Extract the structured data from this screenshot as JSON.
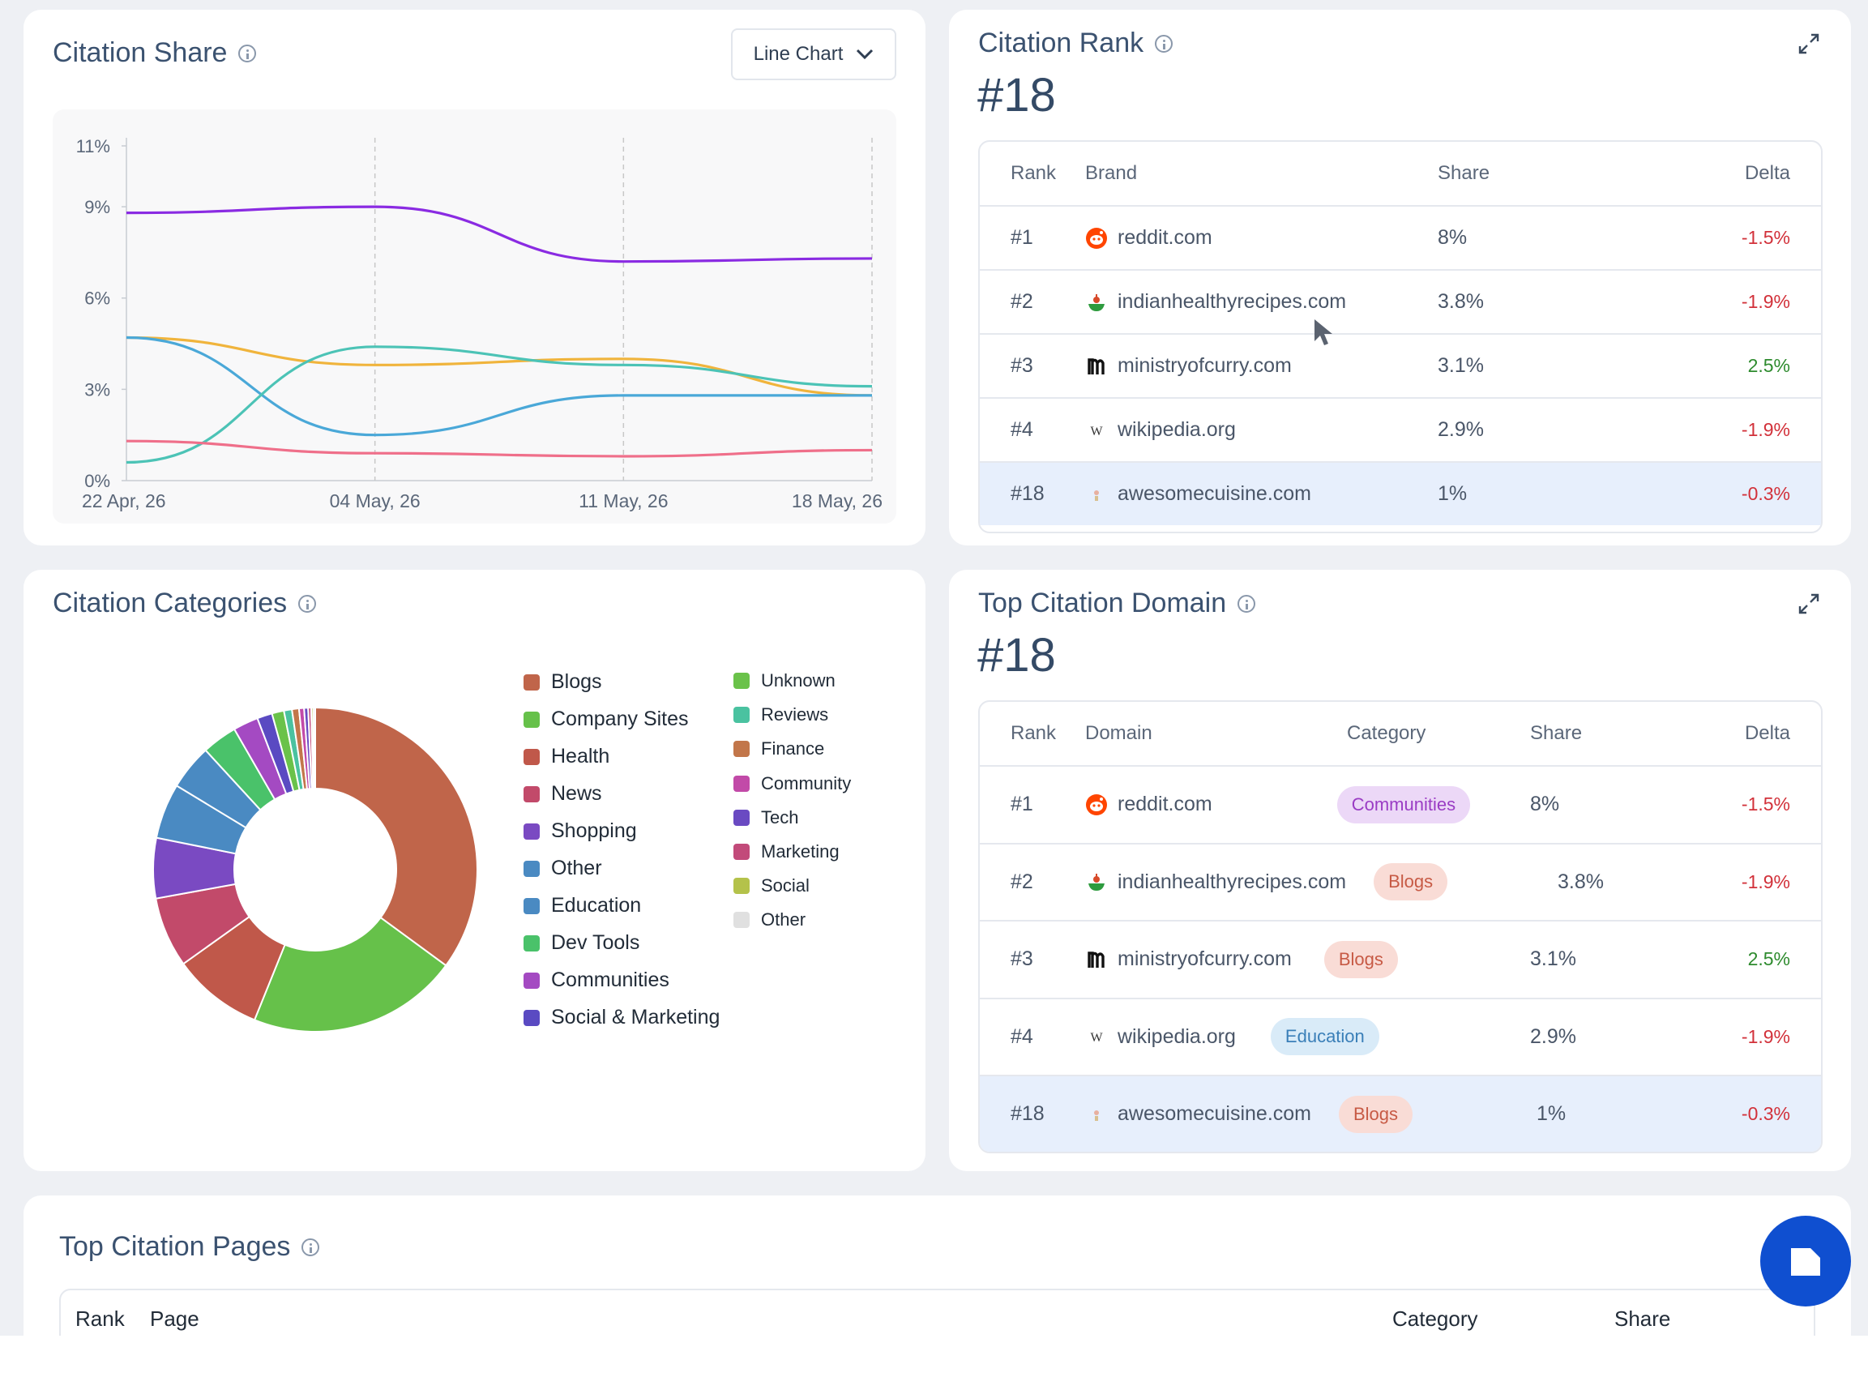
{
  "citation_share": {
    "title": "Citation Share",
    "dropdown_label": "Line Chart",
    "chart_data": {
      "type": "line",
      "x": [
        "22 Apr, 26",
        "04 May, 26",
        "11 May, 26",
        "18 May, 26"
      ],
      "y_ticks": [
        "0%",
        "3%",
        "6%",
        "9%",
        "11%"
      ],
      "ylim": [
        0,
        11
      ],
      "grid": "vertical dashed",
      "series": [
        {
          "color": "#8a2be2",
          "values": [
            8.8,
            9.0,
            7.2,
            7.3
          ]
        },
        {
          "color": "#f0b43c",
          "values": [
            4.7,
            3.8,
            4.0,
            2.8
          ]
        },
        {
          "color": "#4aa8d8",
          "values": [
            4.7,
            1.5,
            2.8,
            2.8
          ]
        },
        {
          "color": "#4cc3b6",
          "values": [
            0.6,
            4.4,
            3.8,
            3.1
          ]
        },
        {
          "color": "#ef6f8a",
          "values": [
            1.3,
            0.9,
            0.8,
            1.0
          ]
        }
      ]
    }
  },
  "citation_rank": {
    "title": "Citation Rank",
    "rank": "#18",
    "headers": {
      "rank": "Rank",
      "brand": "Brand",
      "share": "Share",
      "delta": "Delta"
    },
    "rows": [
      {
        "rank": "#1",
        "brand": "reddit.com",
        "icon": "reddit-icon",
        "share": "8%",
        "delta": "-1.5%"
      },
      {
        "rank": "#2",
        "brand": "indianhealthyrecipes.com",
        "icon": "bowl-icon",
        "share": "3.8%",
        "delta": "-1.9%"
      },
      {
        "rank": "#3",
        "brand": "ministryofcurry.com",
        "icon": "m-logo-icon",
        "share": "3.1%",
        "delta": "2.5%"
      },
      {
        "rank": "#4",
        "brand": "wikipedia.org",
        "icon": "wikipedia-icon",
        "share": "2.9%",
        "delta": "-1.9%"
      },
      {
        "rank": "#18",
        "brand": "awesomecuisine.com",
        "icon": "cuisine-icon",
        "share": "1%",
        "delta": "-0.3%"
      }
    ]
  },
  "citation_categories": {
    "title": "Citation Categories",
    "chart_data": {
      "type": "pie",
      "donut": true,
      "labels": [
        "Blogs",
        "Company Sites",
        "Health",
        "News",
        "Shopping",
        "Other",
        "Education",
        "Dev Tools",
        "Communities",
        "Social & Marketing",
        "Unknown",
        "Reviews",
        "Finance",
        "Community",
        "Tech",
        "Marketing",
        "Social",
        "Other"
      ],
      "colors": [
        "#c0654a",
        "#66c14a",
        "#c0584a",
        "#c24a6a",
        "#7a4ac2",
        "#4a8ac2",
        "#4a8ac2",
        "#4ac26a",
        "#a44ac2",
        "#5a4ac2",
        "#6ac24a",
        "#4ac2a0",
        "#c2764a",
        "#c24aa8",
        "#6a4ac2",
        "#c24a7a",
        "#b4c24a",
        "#e0e0e0"
      ],
      "values": [
        35,
        21,
        9,
        7,
        6,
        5.5,
        4.5,
        3.5,
        2.5,
        1.5,
        1.2,
        0.8,
        0.7,
        0.5,
        0.4,
        0.3,
        0.2,
        0.2
      ]
    }
  },
  "top_citation_domain": {
    "title": "Top Citation Domain",
    "rank": "#18",
    "headers": {
      "rank": "Rank",
      "domain": "Domain",
      "category": "Category",
      "share": "Share",
      "delta": "Delta"
    },
    "rows": [
      {
        "rank": "#1",
        "domain": "reddit.com",
        "icon": "reddit-icon",
        "category": "Communities",
        "share": "8%",
        "delta": "-1.5%"
      },
      {
        "rank": "#2",
        "domain": "indianhealthyrecipes.com",
        "icon": "bowl-icon",
        "category": "Blogs",
        "share": "3.8%",
        "delta": "-1.9%"
      },
      {
        "rank": "#3",
        "domain": "ministryofcurry.com",
        "icon": "m-logo-icon",
        "category": "Blogs",
        "share": "3.1%",
        "delta": "2.5%"
      },
      {
        "rank": "#4",
        "domain": "wikipedia.org",
        "icon": "wikipedia-icon",
        "category": "Education",
        "share": "2.9%",
        "delta": "-1.9%"
      },
      {
        "rank": "#18",
        "domain": "awesomecuisine.com",
        "icon": "cuisine-icon",
        "category": "Blogs",
        "share": "1%",
        "delta": "-0.3%"
      }
    ],
    "category_colors": {
      "Communities": {
        "bg": "#ecd8f7",
        "fg": "#9a3cc4"
      },
      "Blogs": {
        "bg": "#f9dcd6",
        "fg": "#c75a45"
      },
      "Education": {
        "bg": "#d9ebf8",
        "fg": "#3a7fb8"
      }
    }
  },
  "top_citation_pages": {
    "title": "Top Citation Pages",
    "headers": {
      "rank": "Rank",
      "page": "Page",
      "category": "Category",
      "share": "Share"
    }
  },
  "fab": {
    "icon": "brand-logo-icon"
  }
}
